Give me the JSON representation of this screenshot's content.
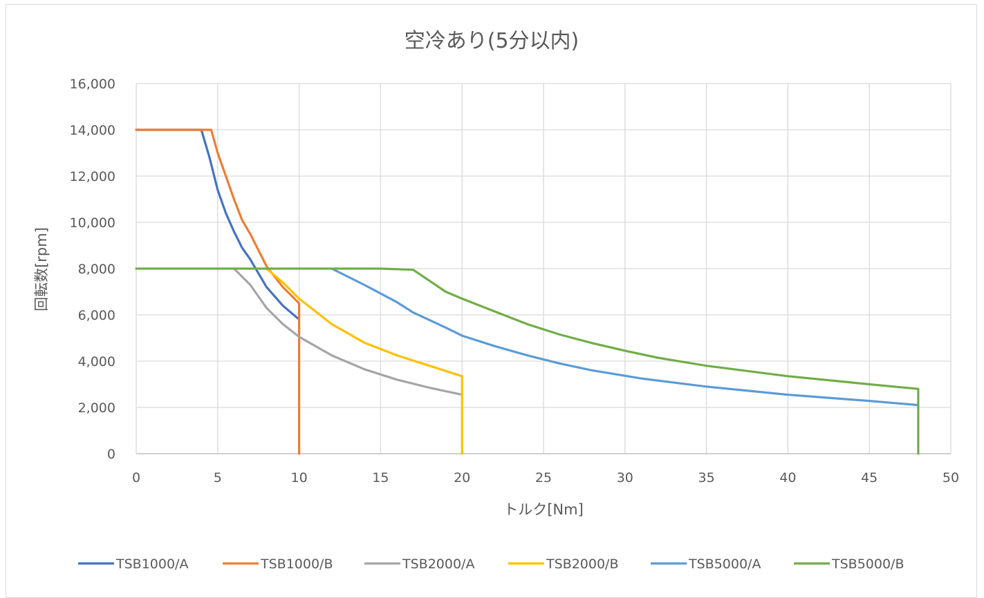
{
  "chart_data": {
    "type": "line",
    "title": "空冷あり(5分以内)",
    "xlabel": "トルク[Nm]",
    "ylabel": "回転数[rpm]",
    "xlim": [
      0,
      50
    ],
    "ylim": [
      0,
      16000
    ],
    "x_ticks": [
      "0",
      "5",
      "10",
      "15",
      "20",
      "25",
      "30",
      "35",
      "40",
      "45",
      "50"
    ],
    "y_ticks": [
      "0",
      "2,000",
      "4,000",
      "6,000",
      "8,000",
      "10,000",
      "12,000",
      "14,000",
      "16,000"
    ],
    "grid": "vertical and horizontal",
    "legend_position": "bottom",
    "series": [
      {
        "name": "TSB1000/A",
        "color": "#4472c4",
        "points": [
          [
            0,
            14000
          ],
          [
            4,
            14000
          ],
          [
            4.5,
            12800
          ],
          [
            5,
            11400
          ],
          [
            5.5,
            10400
          ],
          [
            6,
            9600
          ],
          [
            6.5,
            8900
          ],
          [
            7,
            8400
          ],
          [
            7.5,
            7800
          ],
          [
            8,
            7200
          ],
          [
            9,
            6400
          ],
          [
            10,
            5800
          ]
        ]
      },
      {
        "name": "TSB1000/B",
        "color": "#ed7d31",
        "points": [
          [
            0,
            14000
          ],
          [
            4.6,
            14000
          ],
          [
            5,
            13000
          ],
          [
            5.5,
            12000
          ],
          [
            6,
            11000
          ],
          [
            6.5,
            10100
          ],
          [
            7,
            9500
          ],
          [
            7.5,
            8800
          ],
          [
            8,
            8100
          ],
          [
            9,
            7200
          ],
          [
            10,
            6500
          ],
          [
            10,
            0
          ]
        ]
      },
      {
        "name": "TSB2000/A",
        "color": "#a5a5a5",
        "points": [
          [
            6,
            8000
          ],
          [
            7,
            7300
          ],
          [
            8,
            6300
          ],
          [
            9,
            5600
          ],
          [
            10,
            5050
          ],
          [
            12,
            4250
          ],
          [
            14,
            3650
          ],
          [
            16,
            3200
          ],
          [
            18,
            2850
          ],
          [
            20,
            2550
          ]
        ]
      },
      {
        "name": "TSB2000/B",
        "color": "#ffc000",
        "points": [
          [
            8,
            8000
          ],
          [
            9,
            7400
          ],
          [
            10,
            6700
          ],
          [
            12,
            5600
          ],
          [
            14,
            4800
          ],
          [
            16,
            4250
          ],
          [
            18,
            3800
          ],
          [
            20,
            3350
          ],
          [
            20,
            0
          ]
        ]
      },
      {
        "name": "TSB5000/A",
        "color": "#5b9bd5",
        "points": [
          [
            12,
            8000
          ],
          [
            14,
            7300
          ],
          [
            16,
            6550
          ],
          [
            17,
            6100
          ],
          [
            19,
            5450
          ],
          [
            20,
            5100
          ],
          [
            22,
            4650
          ],
          [
            24,
            4250
          ],
          [
            26,
            3900
          ],
          [
            28,
            3600
          ],
          [
            31,
            3250
          ],
          [
            35,
            2900
          ],
          [
            40,
            2550
          ],
          [
            45,
            2280
          ],
          [
            48,
            2100
          ]
        ]
      },
      {
        "name": "TSB5000/B",
        "color": "#70ad47",
        "points": [
          [
            0,
            8000
          ],
          [
            15,
            8000
          ],
          [
            17,
            7950
          ],
          [
            19,
            7000
          ],
          [
            20,
            6700
          ],
          [
            22,
            6150
          ],
          [
            24,
            5600
          ],
          [
            26,
            5150
          ],
          [
            28,
            4780
          ],
          [
            30,
            4450
          ],
          [
            32,
            4150
          ],
          [
            35,
            3800
          ],
          [
            40,
            3350
          ],
          [
            45,
            3000
          ],
          [
            48,
            2800
          ],
          [
            48,
            0
          ]
        ]
      }
    ]
  }
}
